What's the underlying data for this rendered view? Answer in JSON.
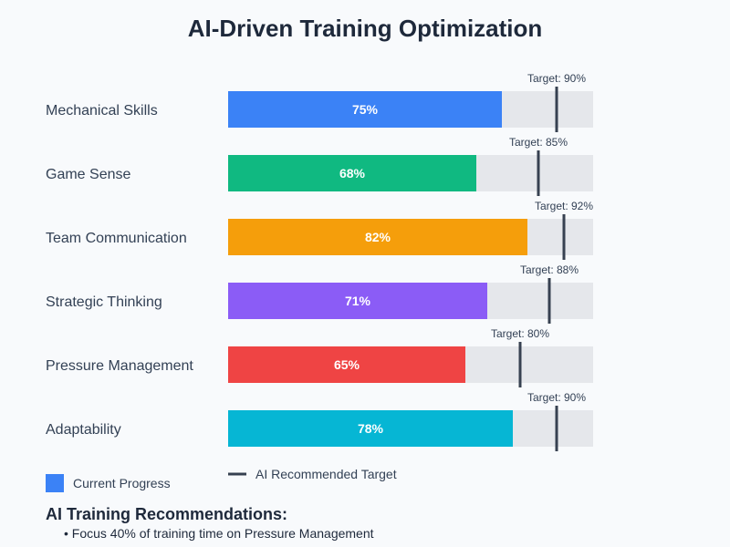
{
  "chart_data": {
    "type": "bar",
    "title": "AI-Driven Training Optimization",
    "xlim": [
      0,
      100
    ],
    "categories": [
      "Mechanical Skills",
      "Game Sense",
      "Team Communication",
      "Strategic Thinking",
      "Pressure Management",
      "Adaptability"
    ],
    "series": [
      {
        "name": "Current Progress",
        "values": [
          75,
          68,
          82,
          71,
          65,
          78
        ],
        "value_labels": [
          "75%",
          "68%",
          "82%",
          "71%",
          "65%",
          "78%"
        ],
        "colors": [
          "#3b82f6",
          "#10b981",
          "#f59e0b",
          "#8b5cf6",
          "#ef4444",
          "#06b6d4"
        ]
      },
      {
        "name": "AI Recommended Target",
        "values": [
          90,
          85,
          92,
          88,
          80,
          90
        ],
        "value_labels": [
          "Target: 90%",
          "Target: 85%",
          "Target: 92%",
          "Target: 88%",
          "Target: 80%",
          "Target: 90%"
        ],
        "color": "#374151"
      }
    ],
    "track_color": "#e5e7eb",
    "legend": {
      "placement": "bottom-left",
      "items": [
        {
          "label": "Current Progress",
          "color": "#3b82f6",
          "marker": "square"
        },
        {
          "label": "AI Recommended Target",
          "color": "#374151",
          "marker": "line"
        }
      ]
    }
  },
  "recommendations": {
    "heading": "AI Training Recommendations:",
    "items": [
      "• Focus 40% of training time on Pressure Management"
    ]
  }
}
